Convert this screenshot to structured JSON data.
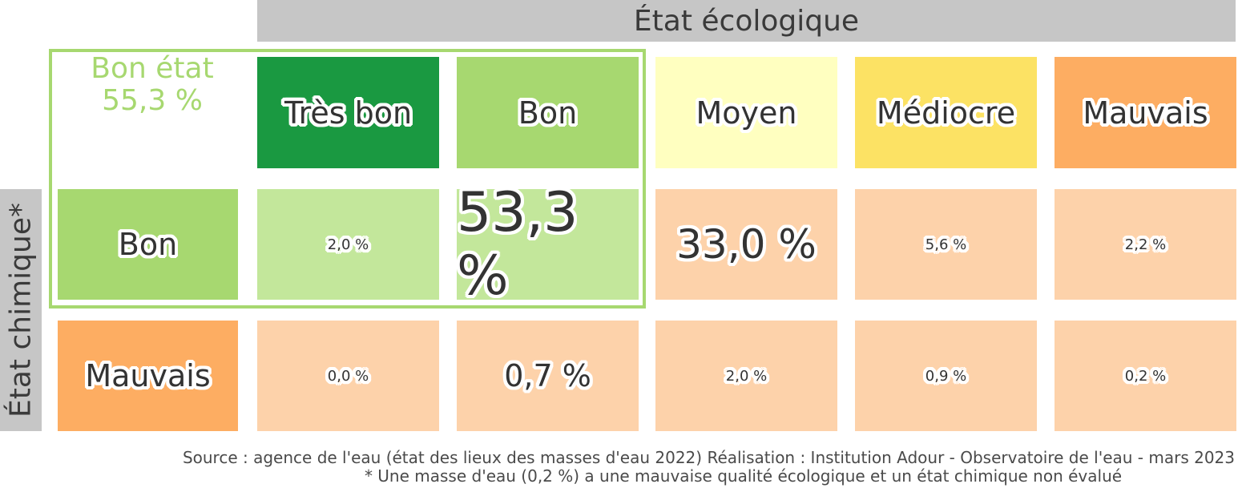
{
  "chart_data": {
    "type": "heatmap",
    "title": "État écologique",
    "row_axis_label": "État chimique*",
    "columns": [
      "Très bon",
      "Bon",
      "Moyen",
      "Médiocre",
      "Mauvais"
    ],
    "column_colors": [
      "#1a9941",
      "#a7d870",
      "#ffffc0",
      "#fce264",
      "#fdad62"
    ],
    "rows": [
      {
        "name": "Bon",
        "color": "#a7d870",
        "values": [
          2.0,
          53.3,
          33.0,
          5.6,
          2.2
        ],
        "labels": [
          "2,0 %",
          "53,3 %",
          "33,0 %",
          "5,6 %",
          "2,2 %"
        ]
      },
      {
        "name": "Mauvais",
        "color": "#fdad62",
        "values": [
          0.0,
          0.7,
          2.0,
          0.9,
          0.2
        ],
        "labels": [
          "0,0 %",
          "0,7 %",
          "2,0 %",
          "0,9 %",
          "0,2 %"
        ]
      }
    ],
    "unit": "%",
    "highlight": {
      "line1": "Bon état",
      "line2": "55,3 %",
      "color": "#a7d870"
    },
    "cell_colors": {
      "good": "#c3e79b",
      "bad": "#fdd2aa"
    }
  },
  "footer": {
    "source": "Source : agence de l'eau (état des lieux des masses d'eau 2022) Réalisation : Institution Adour - Observatoire de l'eau - mars 2023",
    "note": "* Une masse d'eau (0,2 %) a une mauvaise qualité écologique et un état chimique non évalué"
  }
}
